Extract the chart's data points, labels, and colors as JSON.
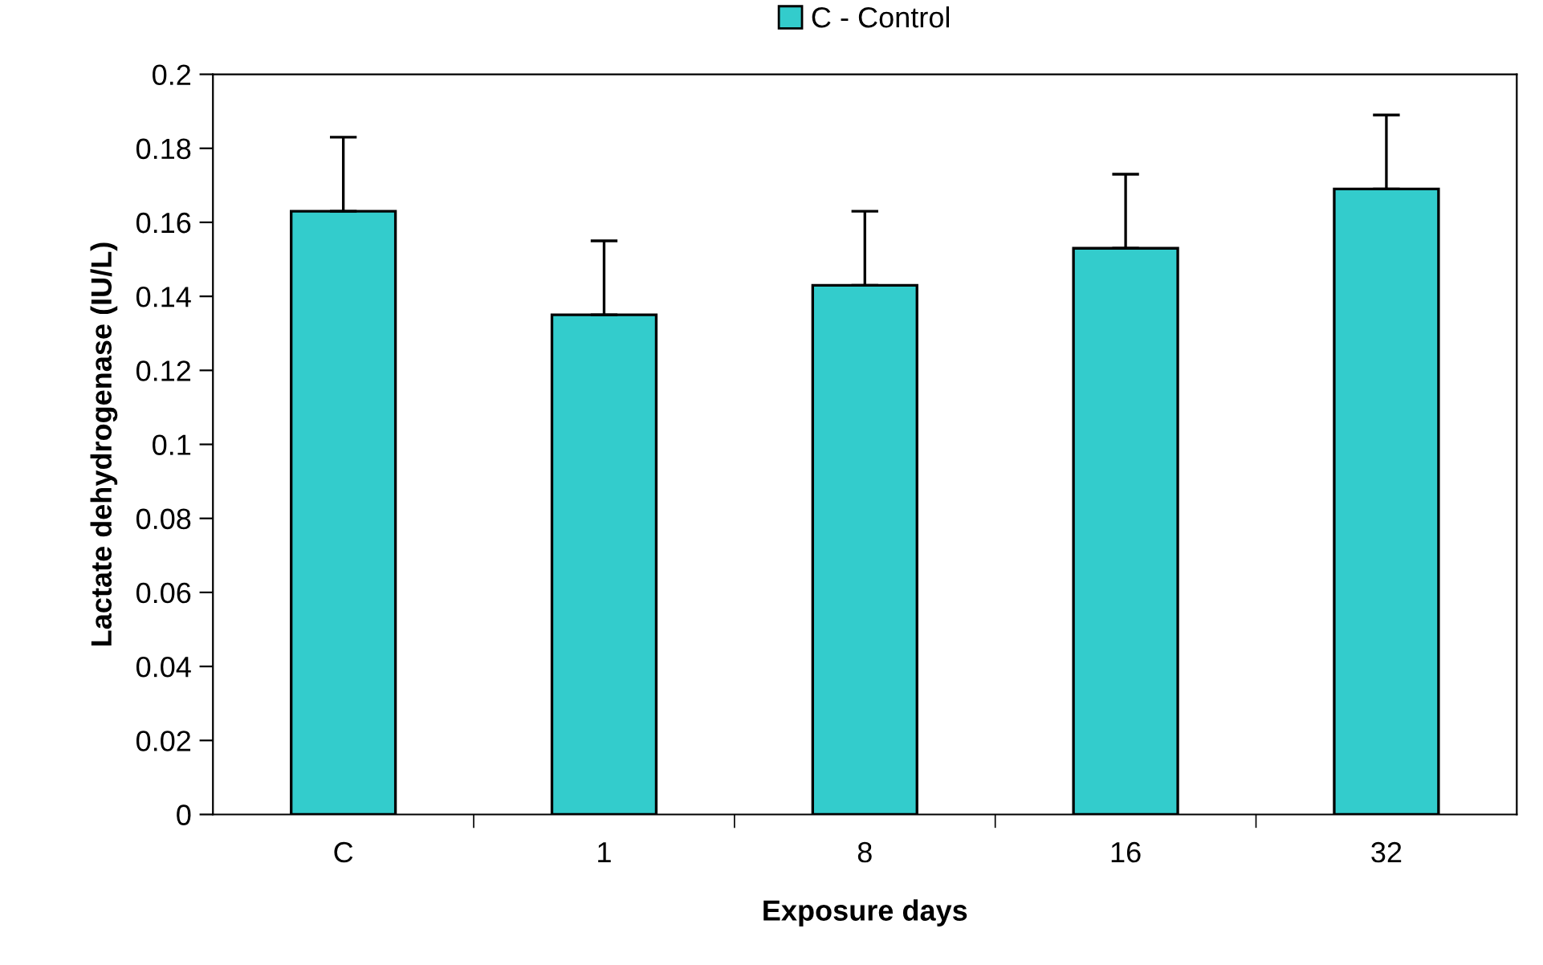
{
  "chart_data": {
    "type": "bar",
    "xlabel": "Exposure days",
    "ylabel": "Lactate dehydrogenase (IU/L)",
    "categories": [
      "C",
      "1",
      "8",
      "16",
      "32"
    ],
    "series": [
      {
        "name": "C - Control",
        "color": "#33cccc",
        "values": [
          0.163,
          0.135,
          0.143,
          0.153,
          0.169
        ],
        "errors": [
          [
            0.163,
            0.183
          ],
          [
            0.135,
            0.155
          ],
          [
            0.143,
            0.163
          ],
          [
            0.153,
            0.173
          ],
          [
            0.169,
            0.189
          ]
        ]
      }
    ],
    "ylim": [
      0,
      0.2
    ],
    "yticks": [
      0,
      0.02,
      0.04,
      0.06,
      0.08,
      0.1,
      0.12,
      0.14,
      0.16,
      0.18,
      0.2
    ],
    "grid": false,
    "legend": "top"
  }
}
